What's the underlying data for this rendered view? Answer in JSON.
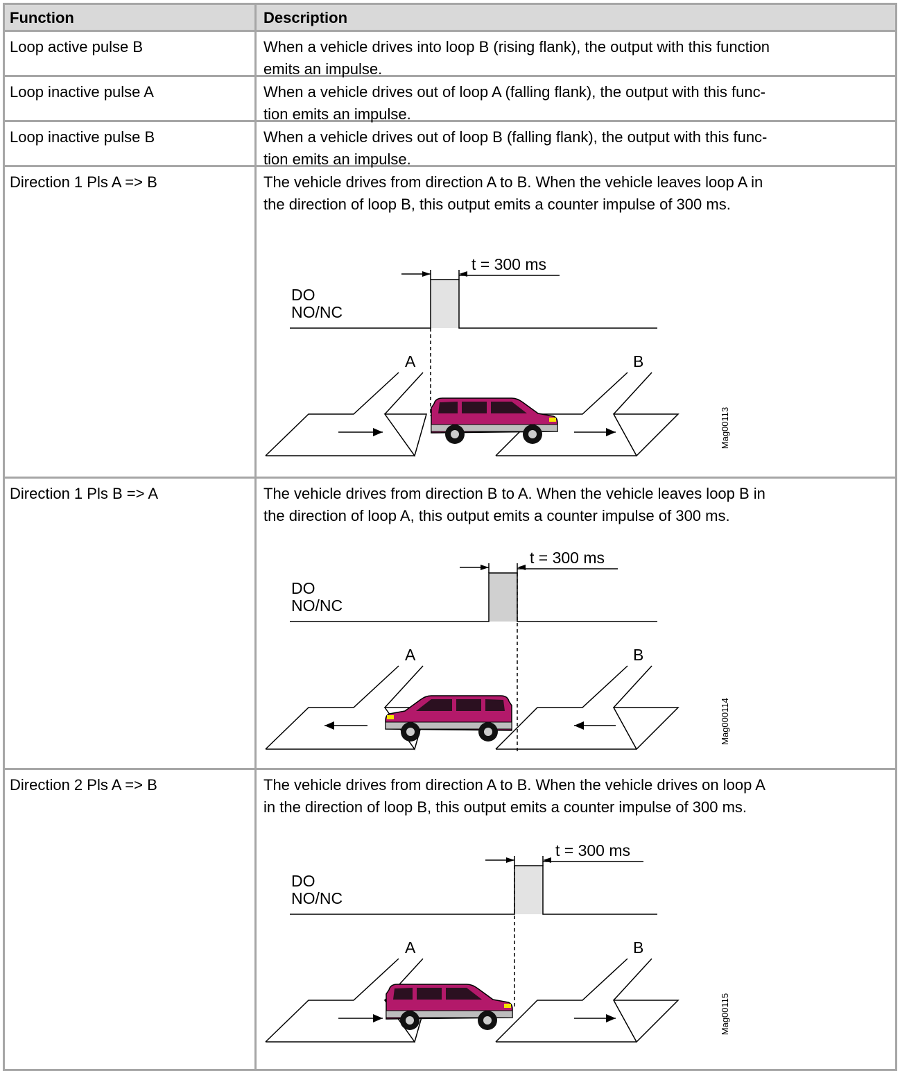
{
  "table": {
    "header": [
      "Function",
      "Description"
    ],
    "rows": [
      {
        "function": "Loop active pulse B",
        "description": [
          "When a vehicle drives into loop B (rising flank), the output with this function",
          "emits an impulse."
        ]
      },
      {
        "function": "Loop inactive pulse A",
        "description": [
          "When a vehicle drives out of loop A (falling flank), the output with this func-",
          "tion emits an impulse."
        ]
      },
      {
        "function": "Loop inactive pulse B",
        "description": [
          "When a vehicle drives out of loop B (falling flank), the output with this func-",
          "tion emits an impulse."
        ]
      },
      {
        "function": "Direction 1 Pls A => B",
        "description": [
          "The vehicle drives from direction A to B. When the vehicle leaves loop A in",
          "the direction of loop B, this output emits a counter impulse of 300 ms."
        ],
        "diagram": {
          "duration": "t = 300 ms",
          "signal": "DO",
          "contact": "NO/NC",
          "loop_a": "A",
          "loop_b": "B",
          "figure_id": "Mag00113"
        }
      },
      {
        "function": "Direction 1 Pls B => A",
        "description": [
          "The vehicle drives from direction B to A. When the vehicle leaves loop B in",
          "the direction of loop A, this output emits a counter impulse of 300 ms."
        ],
        "diagram": {
          "duration": "t = 300 ms",
          "signal": "DO",
          "contact": "NO/NC",
          "loop_a": "A",
          "loop_b": "B",
          "figure_id": "Mag000114"
        }
      },
      {
        "function": "Direction 2 Pls A => B",
        "description": [
          "The vehicle drives from direction A to B. When the vehicle drives on loop A",
          "in the direction of loop B, this output emits a counter impulse of 300 ms."
        ],
        "diagram": {
          "duration": "t = 300 ms",
          "signal": "DO",
          "contact": "NO/NC",
          "loop_a": "A",
          "loop_b": "B",
          "figure_id": "Mag00115"
        }
      }
    ]
  }
}
